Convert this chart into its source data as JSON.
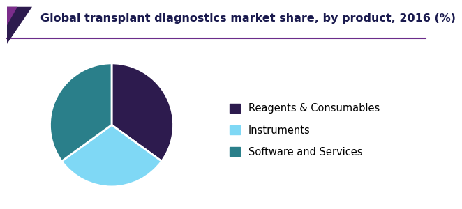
{
  "title": "Global transplant diagnostics market share, by product, 2016 (%)",
  "labels": [
    "Reagents & Consumables",
    "Instruments",
    "Software and Services"
  ],
  "sizes": [
    35,
    30,
    35
  ],
  "colors": [
    "#2d1b4e",
    "#7fd8f5",
    "#2a7f8a"
  ],
  "wedge_edge_color": "white",
  "wedge_linewidth": 2,
  "background_color": "#ffffff",
  "title_fontsize": 11.5,
  "legend_fontsize": 10.5,
  "startangle": 90,
  "title_color": "#1a1a4e",
  "accent_line_color": "#6b2d8b",
  "accent_corner_color_dark": "#2d1b4e",
  "accent_corner_color_purple": "#7b2d8b"
}
